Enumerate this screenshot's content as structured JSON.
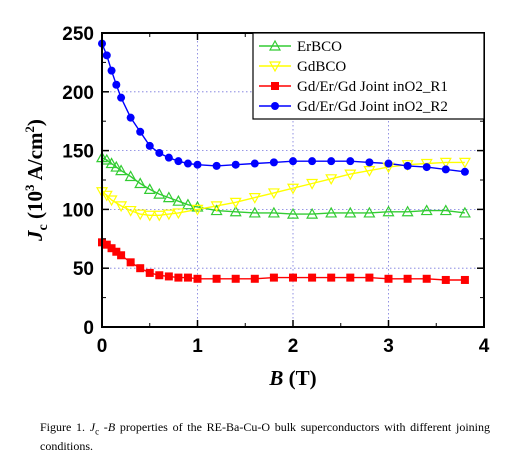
{
  "chart_data": {
    "type": "line",
    "xlabel": {
      "main": "B",
      "unit": " (T)"
    },
    "ylabel": {
      "main": "J",
      "sub": "c",
      "unit_open": " (10",
      "exp1": "3",
      "unit_mid": " A/cm",
      "exp2": "2",
      "unit_close": ")"
    },
    "xlim": [
      0,
      4
    ],
    "ylim": [
      0,
      250
    ],
    "xticks": [
      "0",
      "1",
      "2",
      "3",
      "4"
    ],
    "yticks": [
      "0",
      "50",
      "100",
      "150",
      "200",
      "250"
    ],
    "grid": "dotted",
    "legend_position": "top-right",
    "series": [
      {
        "name": "ErBCO",
        "color": "#33cc33",
        "marker": "open-triangle",
        "x": [
          0,
          0.05,
          0.1,
          0.15,
          0.2,
          0.3,
          0.4,
          0.5,
          0.6,
          0.7,
          0.8,
          0.9,
          1.0,
          1.2,
          1.4,
          1.6,
          1.8,
          2.0,
          2.2,
          2.4,
          2.6,
          2.8,
          3.0,
          3.2,
          3.4,
          3.6,
          3.8
        ],
        "y": [
          144,
          142,
          139,
          136,
          133,
          128,
          122,
          117,
          113,
          110,
          107,
          104,
          102,
          99,
          98,
          97,
          97,
          96,
          96,
          97,
          97,
          97,
          98,
          98,
          99,
          99,
          97
        ]
      },
      {
        "name": "GdBCO",
        "color": "#ffff00",
        "marker": "open-inverted-triangle",
        "x": [
          0,
          0.05,
          0.1,
          0.2,
          0.3,
          0.4,
          0.5,
          0.6,
          0.7,
          0.8,
          1.0,
          1.2,
          1.4,
          1.6,
          1.8,
          2.0,
          2.2,
          2.4,
          2.6,
          2.8,
          3.0,
          3.2,
          3.4,
          3.6,
          3.8
        ],
        "y": [
          115,
          112,
          108,
          103,
          99,
          96,
          95,
          95,
          96,
          97,
          100,
          103,
          106,
          110,
          114,
          118,
          122,
          126,
          130,
          133,
          136,
          138,
          139,
          140,
          140
        ]
      },
      {
        "name": "Gd/Er/Gd Joint inO2_R1",
        "color": "#ff0000",
        "marker": "filled-square",
        "x": [
          0,
          0.05,
          0.1,
          0.15,
          0.2,
          0.3,
          0.4,
          0.5,
          0.6,
          0.7,
          0.8,
          0.9,
          1.0,
          1.2,
          1.4,
          1.6,
          1.8,
          2.0,
          2.2,
          2.4,
          2.6,
          2.8,
          3.0,
          3.2,
          3.4,
          3.6,
          3.8
        ],
        "y": [
          72,
          70,
          67,
          64,
          61,
          55,
          50,
          46,
          44,
          43,
          42,
          42,
          41,
          41,
          41,
          41,
          42,
          42,
          42,
          42,
          42,
          42,
          41,
          41,
          41,
          40,
          40
        ]
      },
      {
        "name": "Gd/Er/Gd Joint inO2_R2",
        "color": "#0000ff",
        "marker": "filled-circle",
        "x": [
          0,
          0.05,
          0.1,
          0.15,
          0.2,
          0.3,
          0.4,
          0.5,
          0.6,
          0.7,
          0.8,
          0.9,
          1.0,
          1.2,
          1.4,
          1.6,
          1.8,
          2.0,
          2.2,
          2.4,
          2.6,
          2.8,
          3.0,
          3.2,
          3.4,
          3.6,
          3.8
        ],
        "y": [
          241,
          231,
          218,
          206,
          195,
          178,
          166,
          154,
          148,
          144,
          141,
          139,
          138,
          137,
          138,
          139,
          140,
          141,
          141,
          141,
          141,
          140,
          139,
          137,
          136,
          134,
          132
        ]
      }
    ]
  },
  "caption": "Figure 1. J c -B properties of the RE-Ba-Cu-O bulk superconductors with different joining conditions.",
  "caption_parts": {
    "prefix": "Figure 1. ",
    "j": "J",
    "jsub": "c",
    "dash": " -",
    "b": "B",
    "rest": " properties of the RE-Ba-Cu-O bulk superconductors with different joining conditions."
  }
}
